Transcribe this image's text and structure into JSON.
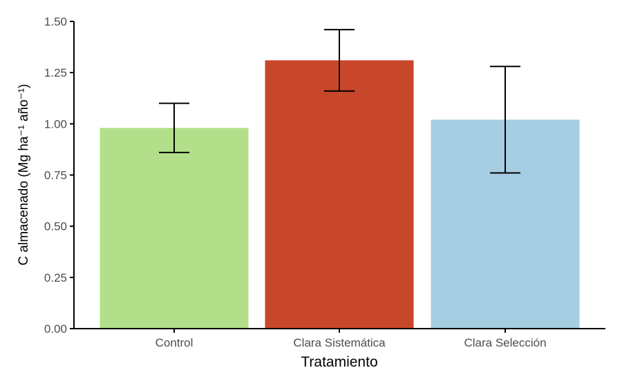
{
  "chart_data": {
    "type": "bar",
    "title": "",
    "xlabel": "Tratamiento",
    "ylabel": "C almacenado (Mg ha⁻¹ año⁻¹)",
    "ylim": [
      0,
      1.5
    ],
    "yticks": [
      "0.00",
      "0.25",
      "0.50",
      "0.75",
      "1.00",
      "1.25",
      "1.50"
    ],
    "categories": [
      "Control",
      "Clara Sistemática",
      "Clara Selección"
    ],
    "values": [
      0.98,
      1.31,
      1.02
    ],
    "error_low": [
      0.86,
      1.16,
      0.76
    ],
    "error_high": [
      1.1,
      1.46,
      1.28
    ],
    "colors": [
      "#b3df8a",
      "#c84629",
      "#a6cde2"
    ],
    "grid": false,
    "legend": "none"
  }
}
